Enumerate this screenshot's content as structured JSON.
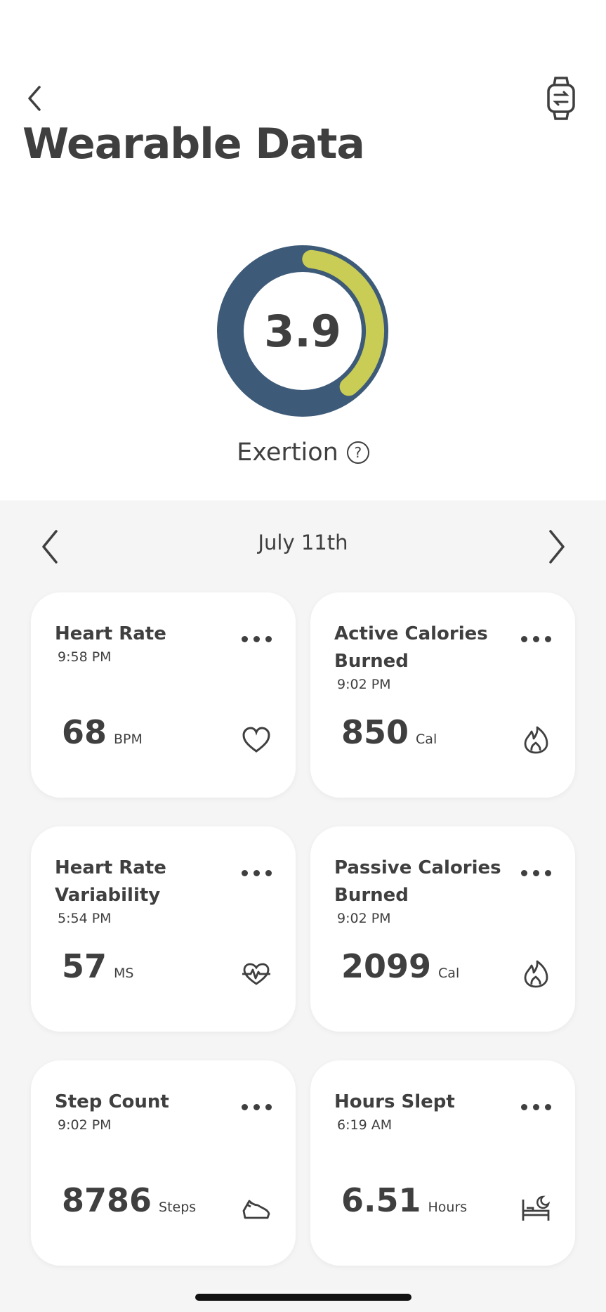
{
  "header": {
    "title": "Wearable Data"
  },
  "exertion": {
    "score": "3.9",
    "fraction": 0.39,
    "label": "Exertion",
    "help": "?",
    "colors": {
      "track": "#3d5a78",
      "fill": "#c9cc55"
    }
  },
  "date_nav": {
    "date": "July 11th"
  },
  "cards": [
    {
      "title": "Heart Rate",
      "time": "9:58 PM",
      "value": "68",
      "unit": "BPM",
      "icon": "heart-icon"
    },
    {
      "title": "Active Calories Burned",
      "time": "9:02 PM",
      "value": "850",
      "unit": "Cal",
      "icon": "flame-icon"
    },
    {
      "title": "Heart Rate Variability",
      "time": "5:54 PM",
      "value": "57",
      "unit": "MS",
      "icon": "heartbeat-icon"
    },
    {
      "title": "Passive Calories Burned",
      "time": "9:02 PM",
      "value": "2099",
      "unit": "Cal",
      "icon": "flame-icon"
    },
    {
      "title": "Step Count",
      "time": "9:02 PM",
      "value": "8786",
      "unit": "Steps",
      "icon": "shoe-icon"
    },
    {
      "title": "Hours Slept",
      "time": "6:19 AM",
      "value": "6.51",
      "unit": "Hours",
      "icon": "bed-icon"
    }
  ]
}
